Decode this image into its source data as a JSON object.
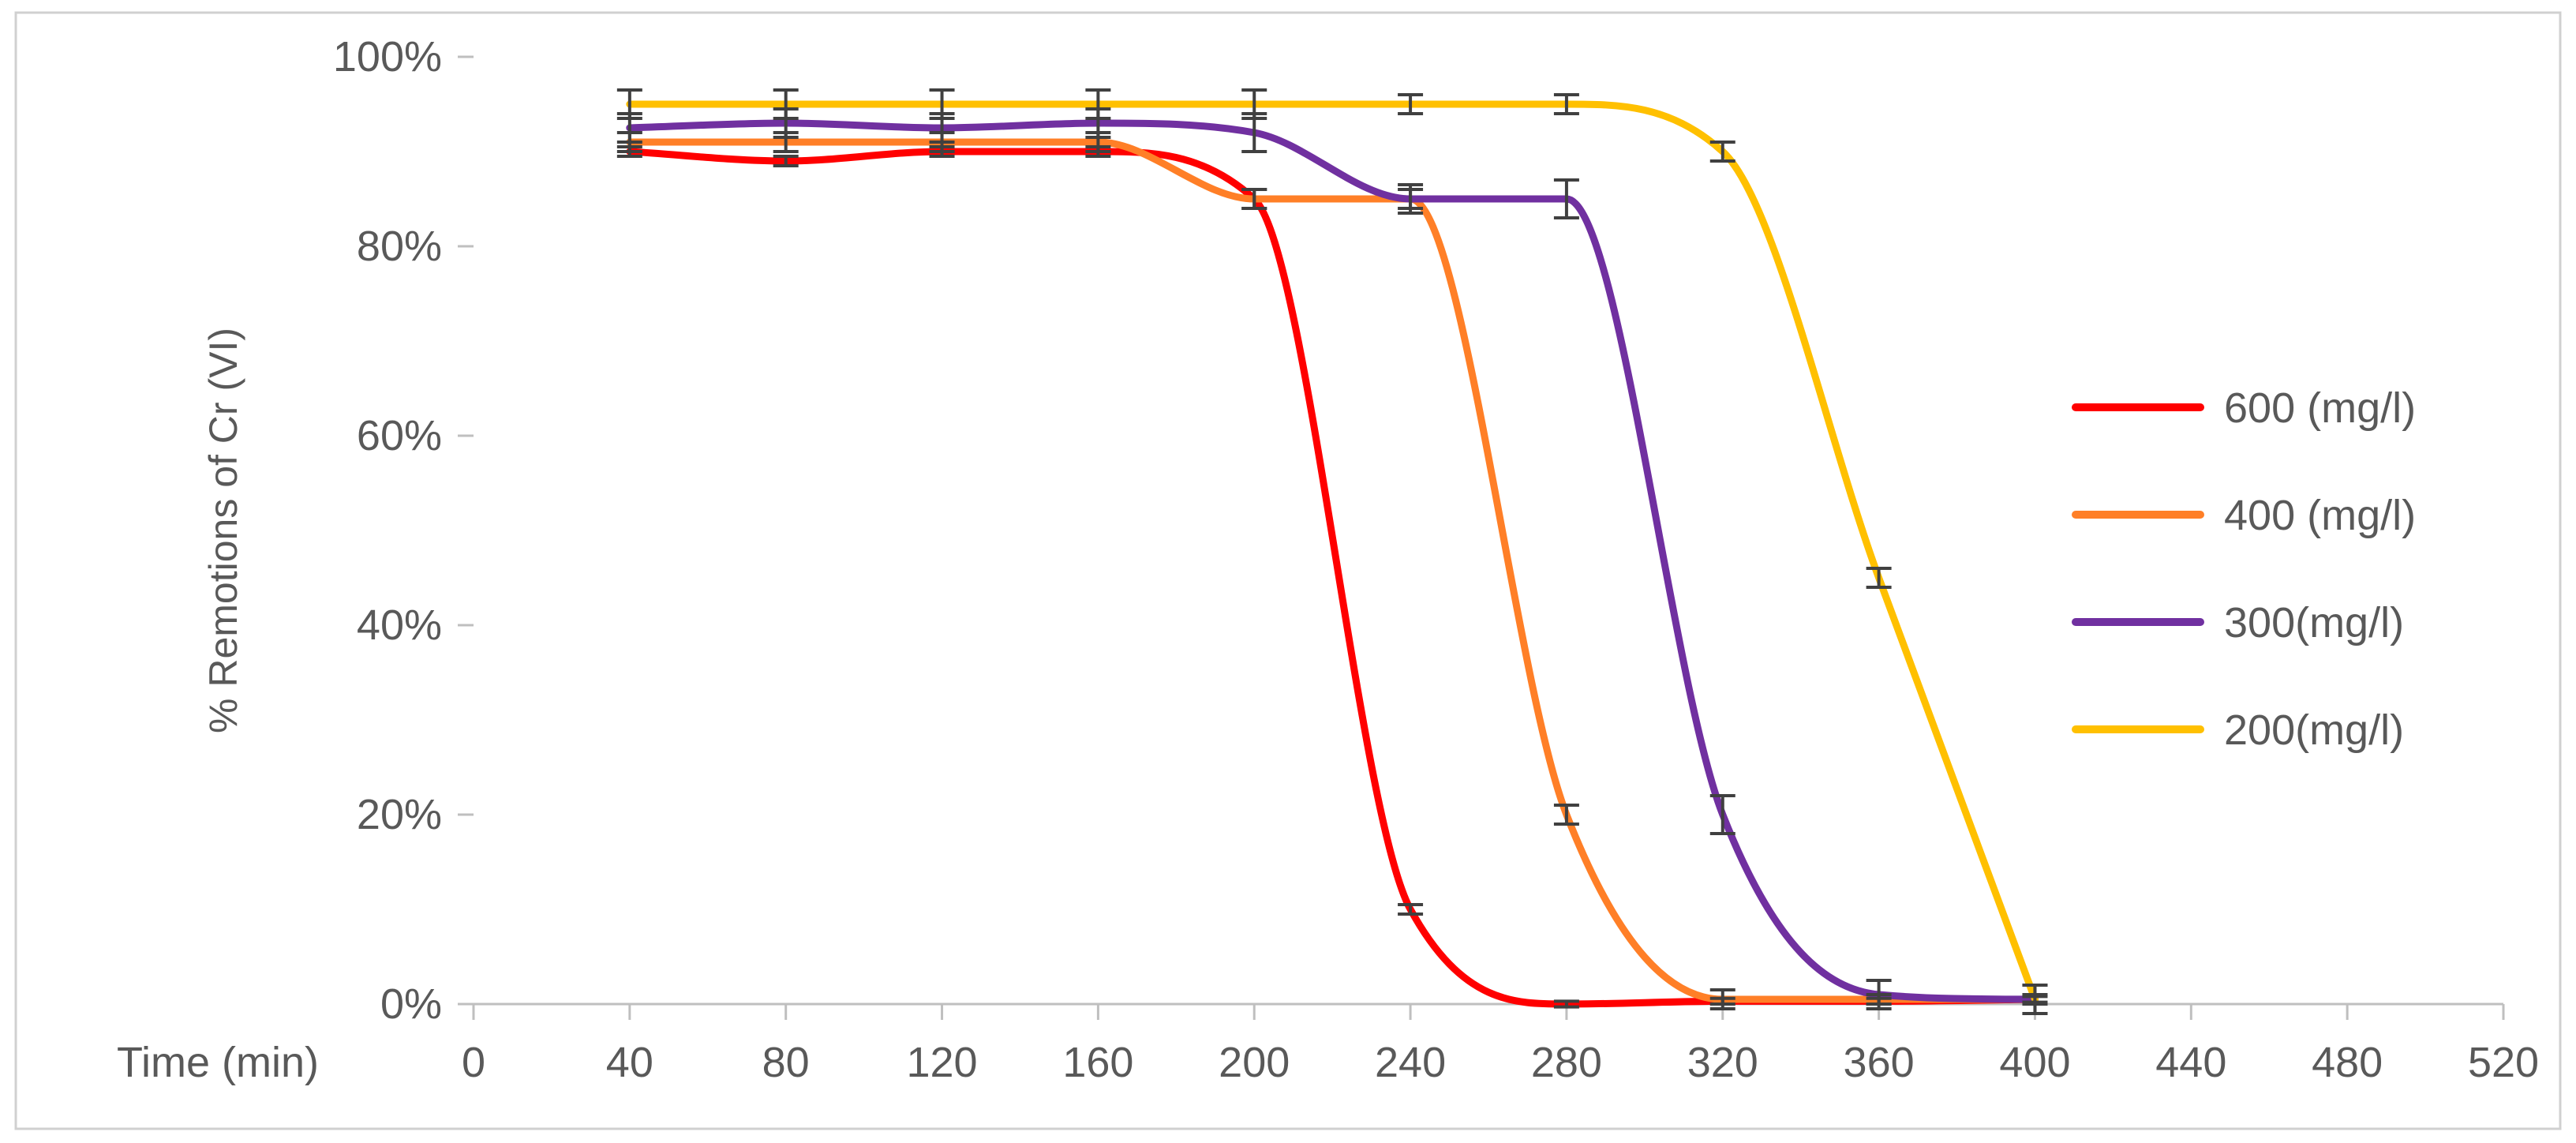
{
  "chart_data": {
    "type": "line",
    "title": "",
    "xlabel": "Time (min)",
    "ylabel": "% Remotions of Cr (VI)",
    "xlim": [
      0,
      520
    ],
    "ylim": [
      0,
      100
    ],
    "x_ticks": [
      0,
      40,
      80,
      120,
      160,
      200,
      240,
      280,
      320,
      360,
      400,
      440,
      480,
      520
    ],
    "y_ticks": [
      {
        "value": 0,
        "label": "0%"
      },
      {
        "value": 20,
        "label": "20%"
      },
      {
        "value": 40,
        "label": "40%"
      },
      {
        "value": 60,
        "label": "60%"
      },
      {
        "value": 80,
        "label": "80%"
      },
      {
        "value": 100,
        "label": "100%"
      }
    ],
    "grid": false,
    "legend_position": "right",
    "smooth": true,
    "series": [
      {
        "name": "600 (mg/l)",
        "color": "#ff0000",
        "x": [
          40,
          80,
          120,
          160,
          200,
          240,
          280,
          320,
          360,
          400
        ],
        "y": [
          90,
          89,
          90,
          90,
          85,
          10,
          0,
          0.3,
          0.3,
          0.5
        ],
        "err": [
          0.5,
          0.5,
          0.5,
          0.5,
          1,
          0.5,
          0.3,
          0.3,
          0.3,
          0.3
        ]
      },
      {
        "name": "400 (mg/l)",
        "color": "#ff7f27",
        "x": [
          40,
          80,
          120,
          160,
          200,
          240,
          280,
          320,
          360,
          400
        ],
        "y": [
          91,
          91,
          91,
          91,
          85,
          85,
          20,
          0.5,
          0.5,
          0.5
        ],
        "err": [
          1,
          1,
          1,
          1,
          1,
          1,
          1,
          1,
          0.5,
          0.5
        ]
      },
      {
        "name": "300(mg/l)",
        "color": "#7030a0",
        "x": [
          40,
          80,
          120,
          160,
          200,
          240,
          280,
          320,
          360,
          400
        ],
        "y": [
          92.5,
          93,
          92.5,
          93,
          92,
          85,
          85,
          20,
          1,
          0.5
        ],
        "err": [
          1.5,
          1.5,
          1.5,
          1.5,
          2,
          1.5,
          2,
          2,
          1.5,
          1.5
        ]
      },
      {
        "name": "200(mg/l)",
        "color": "#ffc000",
        "x": [
          40,
          80,
          120,
          160,
          200,
          240,
          280,
          320,
          360,
          400
        ],
        "y": [
          95,
          95,
          95,
          95,
          95,
          95,
          95,
          90,
          45,
          0.5
        ],
        "err": [
          1.5,
          1.5,
          1.5,
          1.5,
          1.5,
          1,
          1,
          1,
          1,
          1.5
        ]
      }
    ]
  }
}
